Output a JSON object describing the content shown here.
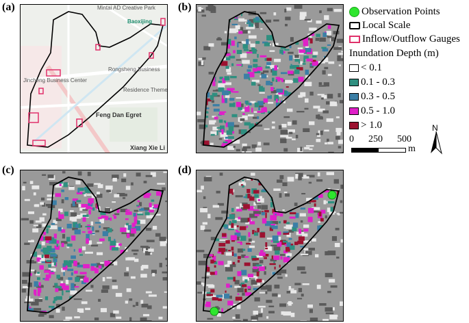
{
  "panels": [
    {
      "id": "a",
      "label": "(a)"
    },
    {
      "id": "b",
      "label": "(b)"
    },
    {
      "id": "c",
      "label": "(c)"
    },
    {
      "id": "d",
      "label": "(d)"
    }
  ],
  "basemap_labels": {
    "mintai": "Mintai AD Creative Park",
    "baoxijing": "Baoxijing",
    "rongsheng": "Rongsheng Business",
    "jincheng": "Jincheng Business Center",
    "residence": "Residence Theme P",
    "fengdan": "Feng Dan Egret",
    "xiangxie": "Xiang Xie Li"
  },
  "legend": {
    "observation": "Observation Points",
    "local_scale": "Local Scale",
    "gauges": "Inflow/Outflow Gauges",
    "depth_title": "Inundation Depth (m)",
    "classes": [
      {
        "label": "< 0.1",
        "color": "#ffffff"
      },
      {
        "label": "0.1 - 0.3",
        "color": "#2f8f80"
      },
      {
        "label": "0.3 - 0.5",
        "color": "#3b7fa6"
      },
      {
        "label": "0.5 - 1.0",
        "color": "#e020c8"
      },
      {
        "label": "> 1.0",
        "color": "#9c1230"
      }
    ],
    "scale_ticks": [
      "0",
      "250",
      "500"
    ],
    "scale_unit": "m",
    "north": "N"
  },
  "colors": {
    "observation_point": "#2ee62e",
    "boundary": "#000000",
    "gauge": "#e0306a"
  }
}
